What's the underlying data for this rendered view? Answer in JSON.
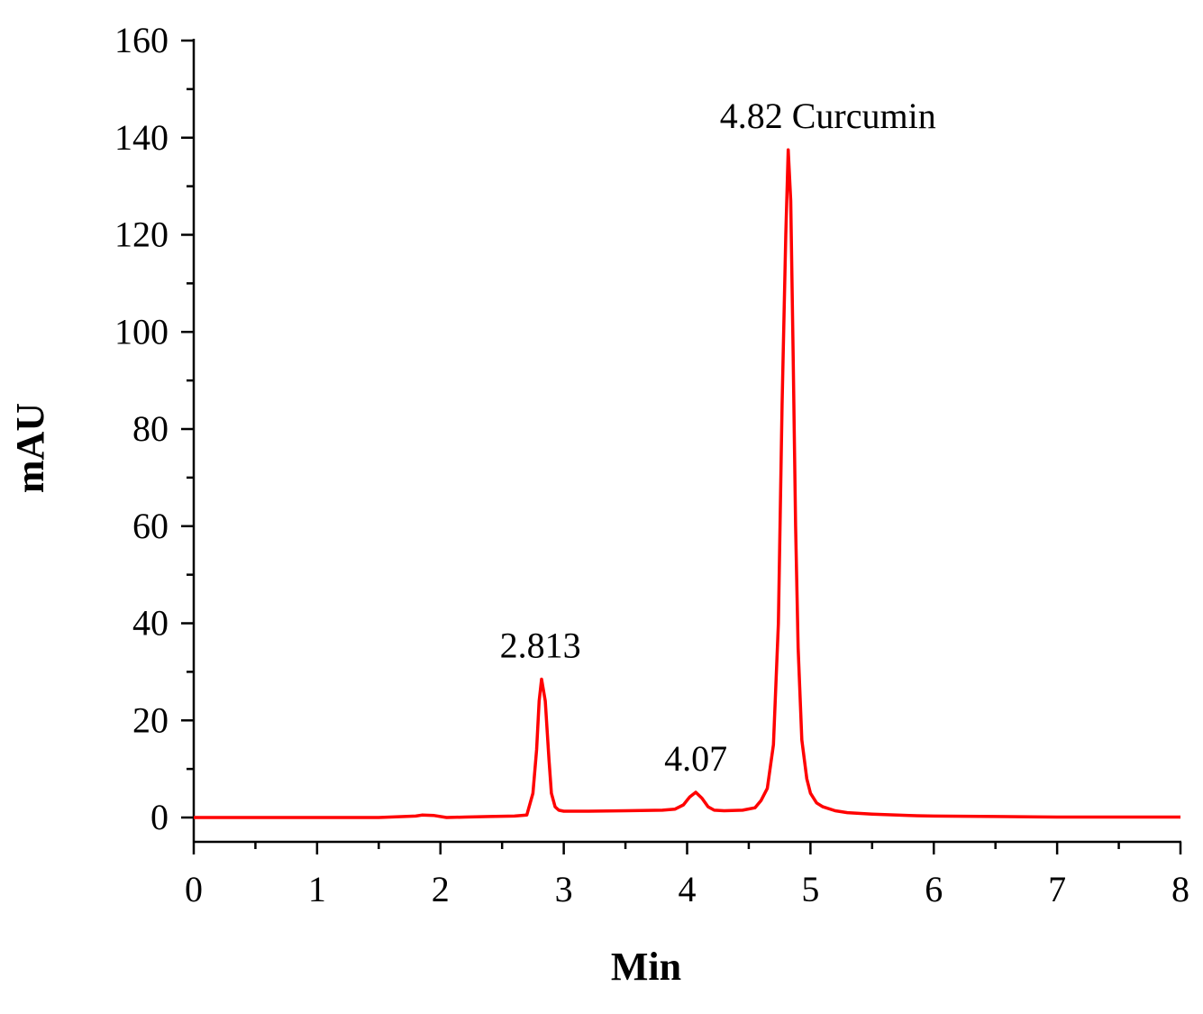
{
  "chart_data": {
    "type": "line",
    "xlabel": "Min",
    "ylabel": "mAU",
    "xlim": [
      0,
      8
    ],
    "ylim": [
      -5,
      160
    ],
    "x_ticks": [
      "0",
      "1",
      "2",
      "3",
      "4",
      "5",
      "6",
      "7",
      "8"
    ],
    "y_ticks": [
      "0",
      "20",
      "40",
      "60",
      "80",
      "100",
      "120",
      "140",
      "160"
    ],
    "grid": false,
    "legend": "none",
    "line_color": "#ff0000",
    "series": [
      {
        "x": [
          0.0,
          0.5,
          1.0,
          1.5,
          1.8,
          1.85,
          1.95,
          2.05,
          2.2,
          2.4,
          2.6,
          2.7,
          2.75,
          2.78,
          2.8,
          2.82,
          2.85,
          2.88,
          2.9,
          2.93,
          2.96,
          3.0,
          3.2,
          3.5,
          3.8,
          3.9,
          3.97,
          4.02,
          4.07,
          4.12,
          4.17,
          4.22,
          4.3,
          4.45,
          4.55,
          4.6,
          4.65,
          4.7,
          4.74,
          4.77,
          4.8,
          4.82,
          4.84,
          4.86,
          4.88,
          4.9,
          4.93,
          4.97,
          5.0,
          5.05,
          5.1,
          5.2,
          5.3,
          5.5,
          5.8,
          6.0,
          6.5,
          7.0,
          7.5,
          8.0
        ],
        "y": [
          0.0,
          0.0,
          0.0,
          0.0,
          0.3,
          0.5,
          0.4,
          0.0,
          0.1,
          0.2,
          0.3,
          0.5,
          5.0,
          14.0,
          24.0,
          28.5,
          24.0,
          12.0,
          5.0,
          2.2,
          1.5,
          1.3,
          1.3,
          1.4,
          1.5,
          1.7,
          2.6,
          4.2,
          5.2,
          4.0,
          2.2,
          1.5,
          1.4,
          1.5,
          2.0,
          3.5,
          6.0,
          15.0,
          40.0,
          85.0,
          120.0,
          137.5,
          127.0,
          95.0,
          60.0,
          35.0,
          16.0,
          8.0,
          5.0,
          3.0,
          2.2,
          1.4,
          1.0,
          0.7,
          0.4,
          0.3,
          0.2,
          0.1,
          0.1,
          0.1
        ]
      }
    ],
    "annotations": [
      {
        "text": "2.813",
        "x": 2.81,
        "y": 28.5
      },
      {
        "text": "4.07",
        "x": 4.07,
        "y": 5.2
      },
      {
        "text": "4.82 Curcumin",
        "x": 4.82,
        "y": 137.5
      }
    ]
  }
}
